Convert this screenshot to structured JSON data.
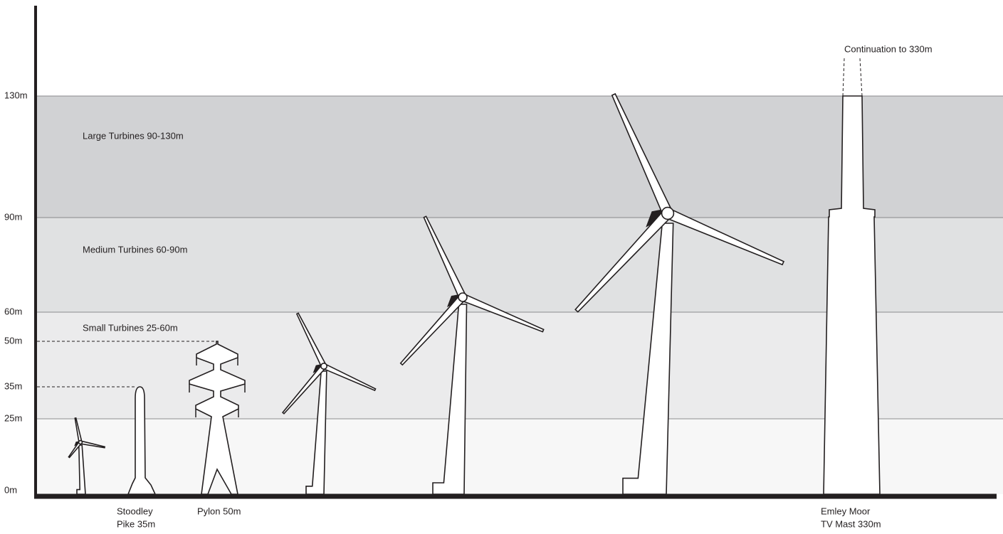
{
  "axis": {
    "ticks": [
      "130m",
      "90m",
      "60m",
      "50m",
      "35m",
      "25m",
      "0m"
    ]
  },
  "bands": [
    "Large Turbines 90-130m",
    "Medium Turbines 60-90m",
    "Small Turbines 25-60m"
  ],
  "objects": [
    {
      "label_lines": [
        "Stoodley",
        "Pike 35m"
      ]
    },
    {
      "label_lines": [
        "Pylon 50m"
      ]
    },
    {
      "label_lines": [
        "Emley Moor",
        "TV Mast 330m"
      ]
    }
  ],
  "annotation": "Continuation to 330m"
}
